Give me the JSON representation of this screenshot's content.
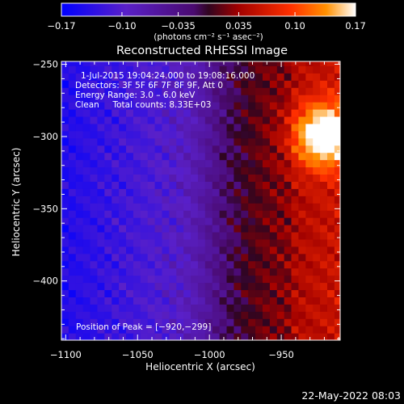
{
  "chart_data": {
    "type": "heatmap",
    "title": "Reconstructed RHESSI Image",
    "xlabel": "Heliocentric X (arcsec)",
    "ylabel": "Heliocentric Y (arcsec)",
    "xlim": [
      -1103,
      -909
    ],
    "ylim": [
      -441,
      -248
    ],
    "x_ticks": [
      -1100,
      -1050,
      -1000,
      -950
    ],
    "x_tick_labels": [
      "−1100",
      "−1050",
      "−1000",
      "−950"
    ],
    "y_ticks": [
      -250,
      -300,
      -350,
      -400
    ],
    "y_tick_labels": [
      "−250",
      "−300",
      "−350",
      "−400"
    ],
    "colorbar": {
      "range": [
        -0.17,
        0.17
      ],
      "ticks": [
        -0.17,
        -0.1,
        -0.035,
        0.035,
        0.1,
        0.17
      ],
      "tick_labels": [
        "−0.17",
        "−0.10",
        "−0.035",
        "0.035",
        "0.10",
        "0.17"
      ],
      "units": "(photons cm⁻² s⁻¹ asec⁻²)"
    },
    "annotations": [
      "1‑Jul‑2015 19:04:24.000 to 19:08:16.000",
      "Detectors: 3F 5F 6F 7F 8F 9F, Att 0",
      "Energy Range: 3.0 – 6.0 keV",
      "Clean     Total counts: 8.33E+03"
    ],
    "peak_text": "Position of Peak = [−920,−299]",
    "peak_position": [
      -920,
      -299
    ],
    "footer_date": "22‑May‑2022 08:03"
  }
}
